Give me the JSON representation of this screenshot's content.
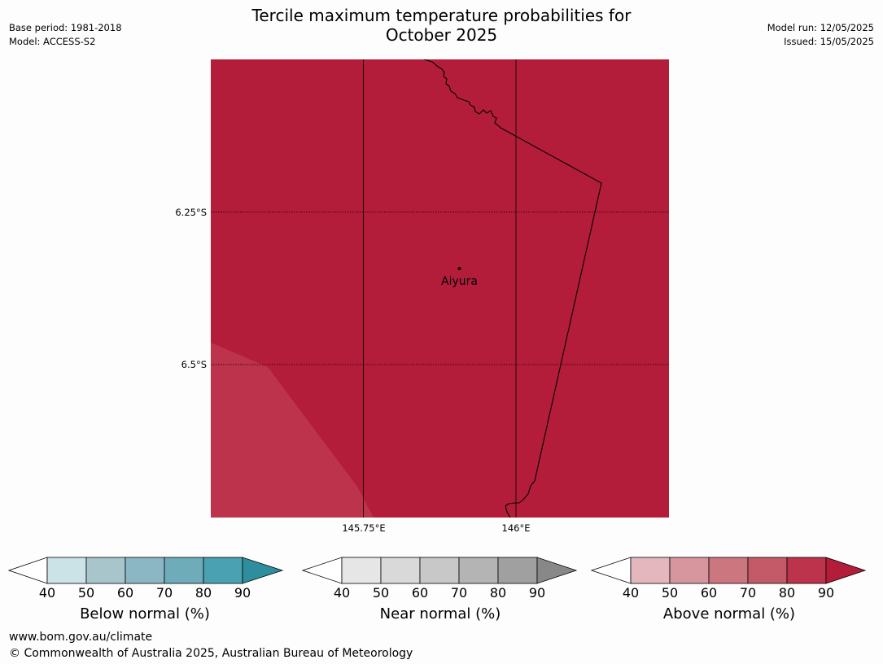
{
  "title_line1": "Tercile maximum temperature probabilities for",
  "title_line2": "October 2025",
  "meta_left": [
    "Base period: 1981-2018",
    "Model: ACCESS-S2"
  ],
  "meta_right": [
    "Model run: 12/05/2025",
    "Issued: 15/05/2025"
  ],
  "map": {
    "latitudes": [
      "6.25°S",
      "6.5°S"
    ],
    "longitudes": [
      "145.75°E",
      "146°E"
    ],
    "place": "Aiyura",
    "fill_main": "#b31d3a",
    "fill_lower": "#bd334b",
    "region_probability_above_pct": [
      ">90",
      "80-90"
    ]
  },
  "colorbars": [
    {
      "label": "Below normal (%)",
      "ticks": [
        "40",
        "50",
        "60",
        "70",
        "80",
        "90"
      ],
      "colors": [
        "#ffffff",
        "#cbe2e7",
        "#a8c5cb",
        "#8bb6c3",
        "#6eacb9",
        "#4aa1b1",
        "#2e8e9e"
      ]
    },
    {
      "label": "Near normal (%)",
      "ticks": [
        "40",
        "50",
        "60",
        "70",
        "80",
        "90"
      ],
      "colors": [
        "#ffffff",
        "#e6e6e6",
        "#d9d9d9",
        "#c8c8c8",
        "#b4b4b4",
        "#a0a0a0",
        "#888888"
      ]
    },
    {
      "label": "Above normal (%)",
      "ticks": [
        "40",
        "50",
        "60",
        "70",
        "80",
        "90"
      ],
      "colors": [
        "#ffffff",
        "#e3b7bd",
        "#d7959e",
        "#cc7680",
        "#c45a67",
        "#bd334b",
        "#b31d3a"
      ]
    }
  ],
  "footer": {
    "url": "www.bom.gov.au/climate",
    "copyright": "© Commonwealth of Australia 2025, Australian Bureau of Meteorology"
  }
}
